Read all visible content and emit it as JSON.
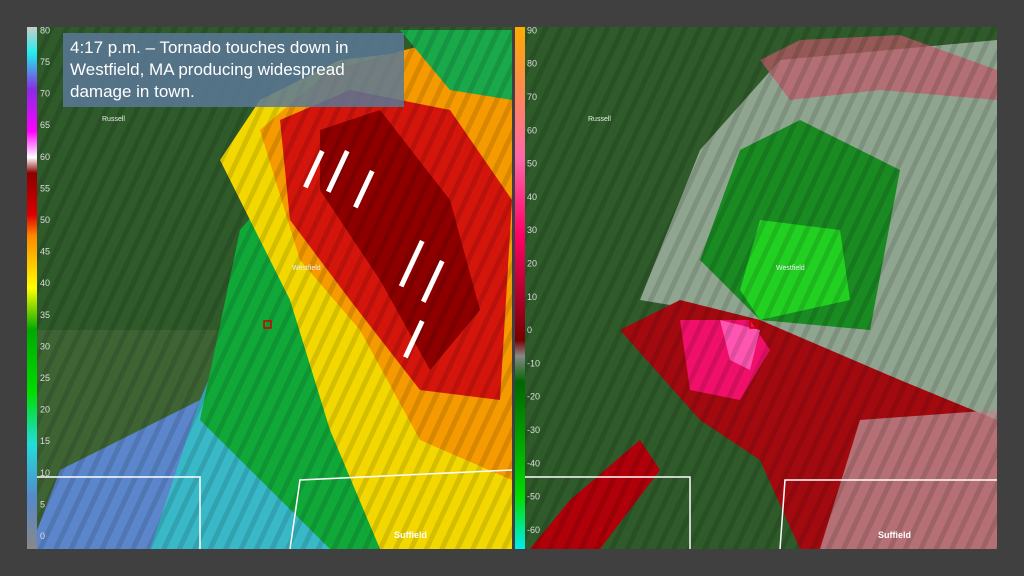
{
  "caption": {
    "lines": [
      "4:17 p.m. – Tornado touches down in",
      "Westfield, MA producing widespread",
      "damage in town."
    ]
  },
  "reflectivity_panel": {
    "scale_labels": [
      "80",
      "75",
      "70",
      "65",
      "60",
      "55",
      "50",
      "45",
      "40",
      "35",
      "30",
      "25",
      "20",
      "15",
      "10",
      "5",
      "0"
    ],
    "places": [
      "Russell",
      "Westfield",
      "Suffield"
    ]
  },
  "velocity_panel": {
    "scale_labels": [
      "90",
      "80",
      "70",
      "60",
      "50",
      "40",
      "30",
      "20",
      "10",
      "0",
      "-10",
      "-20",
      "-30",
      "-40",
      "-50",
      "-60"
    ],
    "places": [
      "Russell",
      "Westfield",
      "Suffield"
    ]
  }
}
